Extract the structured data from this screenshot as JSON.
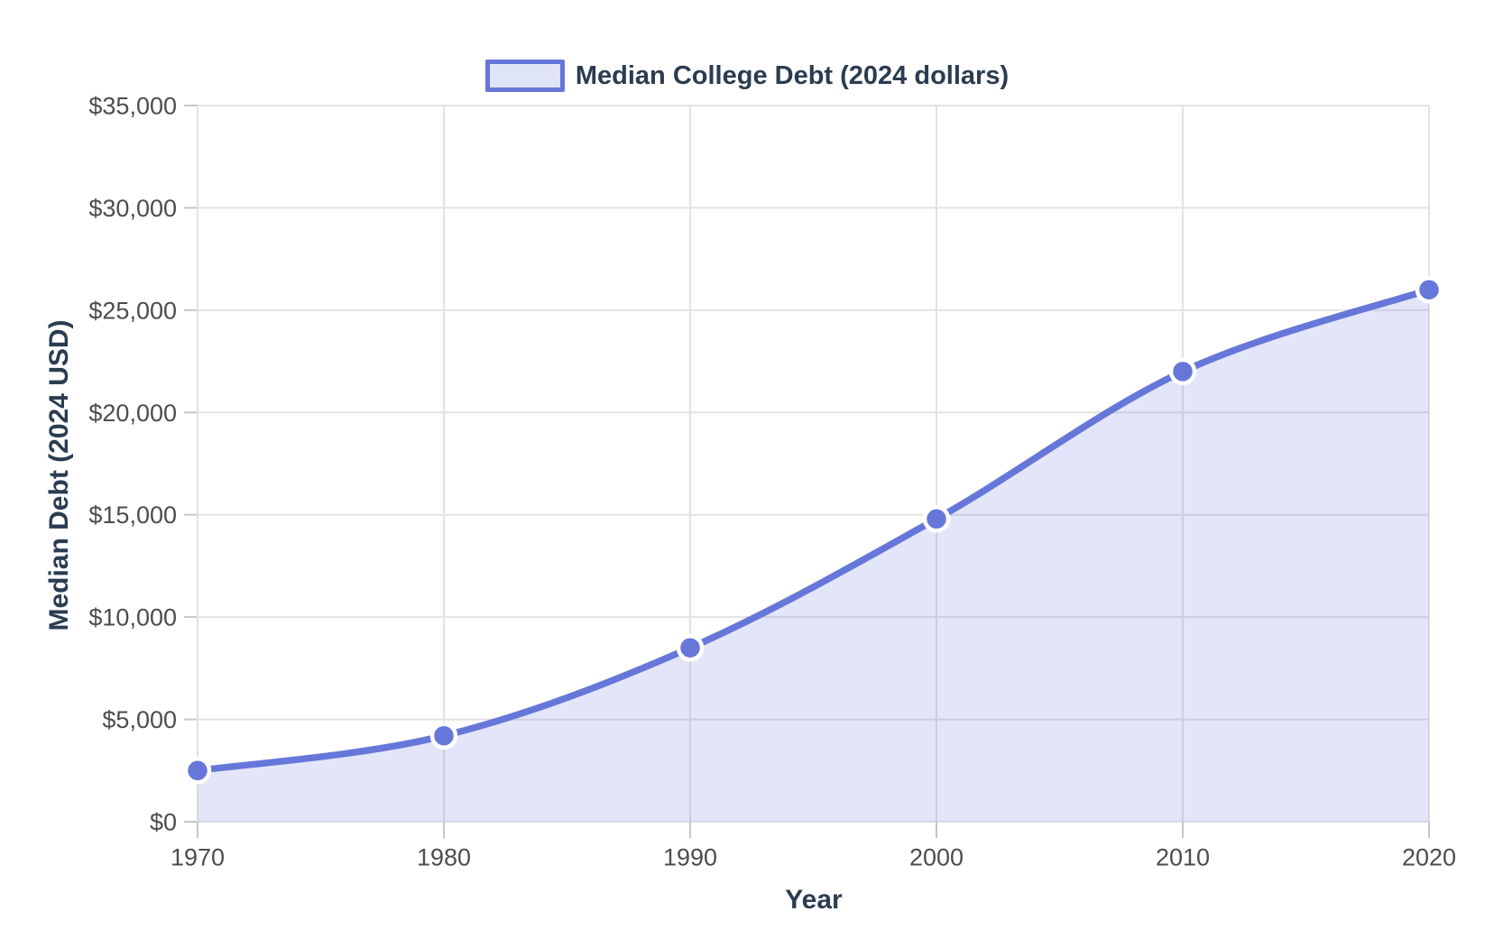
{
  "chart_data": {
    "type": "area",
    "title": "",
    "legend": [
      {
        "label": "Median College Debt (2024 dollars)"
      }
    ],
    "legend_position": "top",
    "categories": [
      "1970",
      "1980",
      "1990",
      "2000",
      "2010",
      "2020"
    ],
    "series": [
      {
        "name": "Median College Debt (2024 dollars)",
        "values": [
          2500,
          4200,
          8500,
          14800,
          22000,
          26000
        ]
      }
    ],
    "xlabel": "Year",
    "ylabel": "Median Debt (2024 USD)",
    "ylim": [
      0,
      35000
    ],
    "grid": true,
    "y_ticks": {
      "values": [
        0,
        5000,
        10000,
        15000,
        20000,
        25000,
        30000,
        35000
      ],
      "labels": [
        "$0",
        "$5,000",
        "$10,000",
        "$15,000",
        "$20,000",
        "$25,000",
        "$30,000",
        "$35,000"
      ]
    },
    "colors": {
      "line": "#6677d9",
      "fill": "rgba(102,119,217,0.18)",
      "marker": "#6677d9",
      "marker_border": "#ffffff",
      "grid": "#e2e2e2",
      "tick_mark": "#c6c6c6",
      "tick_label": "#4d4d4d",
      "axis_title": "#2b3c51",
      "legend_text": "#2b3c51",
      "swatch_fill": "#dfe4f8"
    }
  }
}
